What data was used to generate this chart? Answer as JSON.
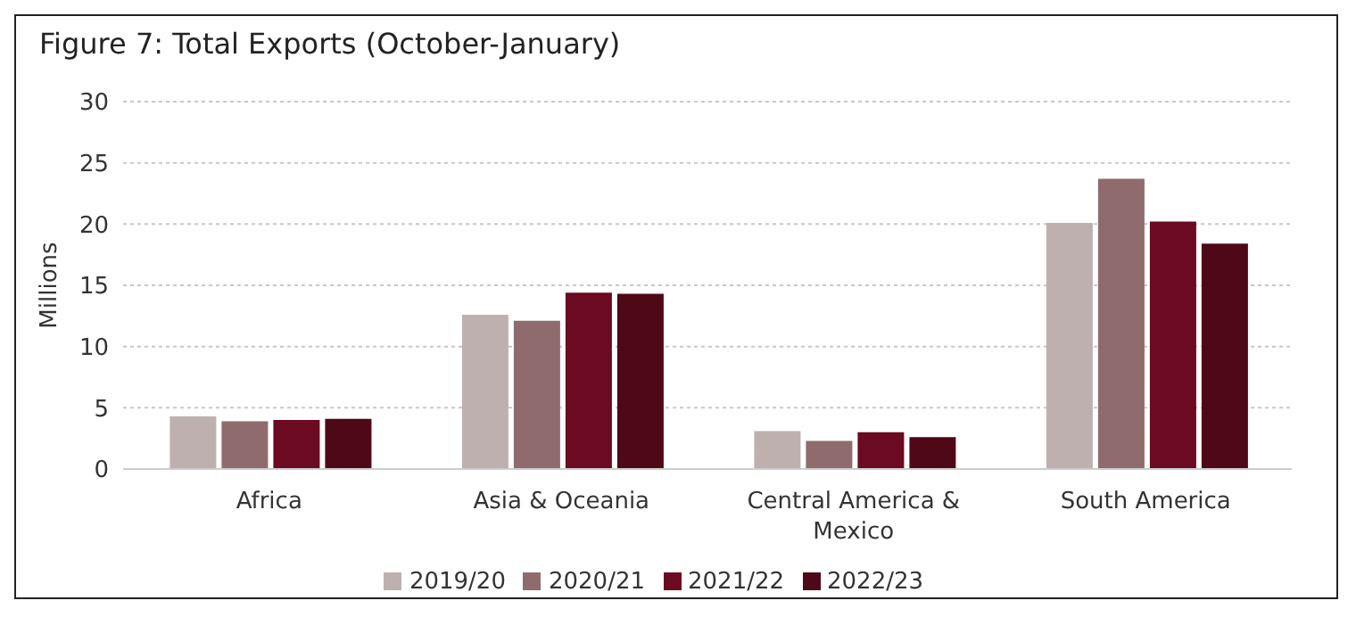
{
  "chart_data": {
    "type": "bar",
    "title": "Figure 7: Total Exports (October-January)",
    "ylabel": "Millions",
    "categories": [
      "Africa",
      "Asia & Oceania",
      "Central America & Mexico",
      "South America"
    ],
    "series": [
      {
        "name": "2019/20",
        "color": "#bfb0b0",
        "values": [
          4.3,
          12.6,
          3.1,
          20.1
        ]
      },
      {
        "name": "2020/21",
        "color": "#8f6b6e",
        "values": [
          3.9,
          12.1,
          2.3,
          23.7
        ]
      },
      {
        "name": "2021/22",
        "color": "#6b0a20",
        "values": [
          4.0,
          14.4,
          3.0,
          20.2
        ]
      },
      {
        "name": "2022/23",
        "color": "#4f0818",
        "values": [
          4.1,
          14.3,
          2.6,
          18.4
        ]
      }
    ],
    "ylim": [
      0,
      30
    ],
    "yticks": [
      0,
      5,
      10,
      15,
      20,
      25,
      30
    ],
    "grid": "y",
    "legend": "bottom"
  }
}
